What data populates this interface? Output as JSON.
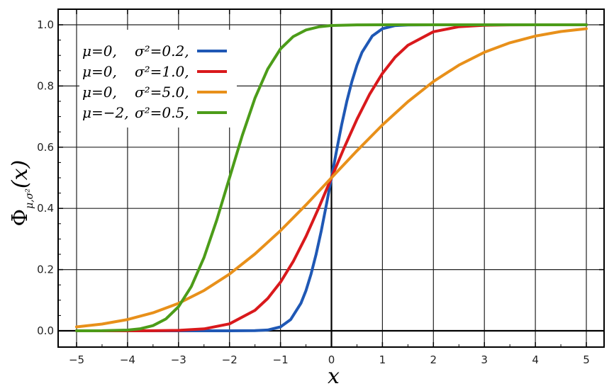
{
  "chart_data": {
    "type": "line",
    "title": "",
    "xlabel": "x",
    "ylabel": "Φμ,σ²(x)",
    "ylabel_main": "Φ",
    "ylabel_sub": "μ,σ²",
    "ylabel_arg": "(x)",
    "xlim": [
      -5,
      5
    ],
    "ylim": [
      0,
      1
    ],
    "x_ticks": [
      -5,
      -4,
      -3,
      -2,
      -1,
      0,
      1,
      2,
      3,
      4,
      5
    ],
    "x_tick_labels": [
      "−5",
      "−4",
      "−3",
      "−2",
      "−1",
      "0",
      "1",
      "2",
      "3",
      "4",
      "5"
    ],
    "y_ticks": [
      0,
      0.2,
      0.4,
      0.6,
      0.8,
      1.0
    ],
    "y_tick_labels": [
      "0.0",
      "0.2",
      "0.4",
      "0.6",
      "0.8",
      "1.0"
    ],
    "grid": true,
    "legend_position": "top-left",
    "series": [
      {
        "name": "μ=0, σ²=0.2,",
        "mu_label": "μ=0,",
        "sigma_label": "σ²=0.2,",
        "color": "#1f58b5",
        "x": [
          -5,
          -4,
          -3,
          -2.5,
          -2,
          -1.5,
          -1.25,
          -1,
          -0.8,
          -0.6,
          -0.5,
          -0.4,
          -0.3,
          -0.2,
          -0.1,
          0,
          0.1,
          0.2,
          0.3,
          0.4,
          0.5,
          0.6,
          0.8,
          1,
          1.25,
          1.5,
          2,
          2.5,
          3,
          4,
          5
        ],
        "y": [
          0.0,
          0.0,
          0.0,
          0.0,
          0.0,
          0.0004,
          0.0026,
          0.0127,
          0.0368,
          0.0899,
          0.1318,
          0.1855,
          0.2506,
          0.3264,
          0.4115,
          0.5,
          0.5885,
          0.6736,
          0.7494,
          0.8145,
          0.8682,
          0.9101,
          0.9632,
          0.9873,
          0.9974,
          0.9996,
          1.0,
          1.0,
          1.0,
          1.0,
          1.0
        ]
      },
      {
        "name": "μ=0, σ²=1.0,",
        "mu_label": "μ=0,",
        "sigma_label": "σ²=1.0,",
        "color": "#d9191c",
        "x": [
          -5,
          -4,
          -3.5,
          -3,
          -2.5,
          -2,
          -1.5,
          -1.25,
          -1,
          -0.75,
          -0.5,
          -0.25,
          0,
          0.25,
          0.5,
          0.75,
          1,
          1.25,
          1.5,
          2,
          2.5,
          3,
          3.5,
          4,
          5
        ],
        "y": [
          0.0,
          0.0,
          0.0002,
          0.0013,
          0.0062,
          0.0228,
          0.0668,
          0.1056,
          0.1587,
          0.2266,
          0.3085,
          0.4013,
          0.5,
          0.5987,
          0.6915,
          0.7734,
          0.8413,
          0.8944,
          0.9332,
          0.9772,
          0.9938,
          0.9987,
          0.9998,
          1.0,
          1.0
        ]
      },
      {
        "name": "μ=0, σ²=5.0,",
        "mu_label": "μ=0,",
        "sigma_label": "σ²=5.0,",
        "color": "#e8901a",
        "x": [
          -5,
          -4.5,
          -4,
          -3.5,
          -3,
          -2.5,
          -2,
          -1.5,
          -1,
          -0.5,
          0,
          0.5,
          1,
          1.5,
          2,
          2.5,
          3,
          3.5,
          4,
          4.5,
          5
        ],
        "y": [
          0.0127,
          0.0221,
          0.0368,
          0.0588,
          0.0899,
          0.1318,
          0.1855,
          0.2512,
          0.3274,
          0.4115,
          0.5,
          0.5885,
          0.6726,
          0.7488,
          0.8145,
          0.8682,
          0.9101,
          0.9412,
          0.9632,
          0.9779,
          0.9873
        ]
      },
      {
        "name": "μ=−2, σ²=0.5,",
        "mu_label": "μ=−2,",
        "sigma_label": "σ²=0.5,",
        "color": "#4c9c19",
        "x": [
          -5,
          -4.5,
          -4,
          -3.75,
          -3.5,
          -3.25,
          -3,
          -2.75,
          -2.5,
          -2.25,
          -2,
          -1.75,
          -1.5,
          -1.25,
          -1,
          -0.75,
          -0.5,
          -0.25,
          0,
          0.5,
          1,
          2,
          3,
          4,
          5
        ],
        "y": [
          0.0,
          0.0002,
          0.0023,
          0.0067,
          0.0169,
          0.0385,
          0.0786,
          0.1444,
          0.2398,
          0.3618,
          0.5,
          0.6382,
          0.7602,
          0.8556,
          0.9214,
          0.9615,
          0.9831,
          0.9933,
          0.9977,
          0.9998,
          1.0,
          1.0,
          1.0,
          1.0,
          1.0
        ]
      }
    ]
  }
}
